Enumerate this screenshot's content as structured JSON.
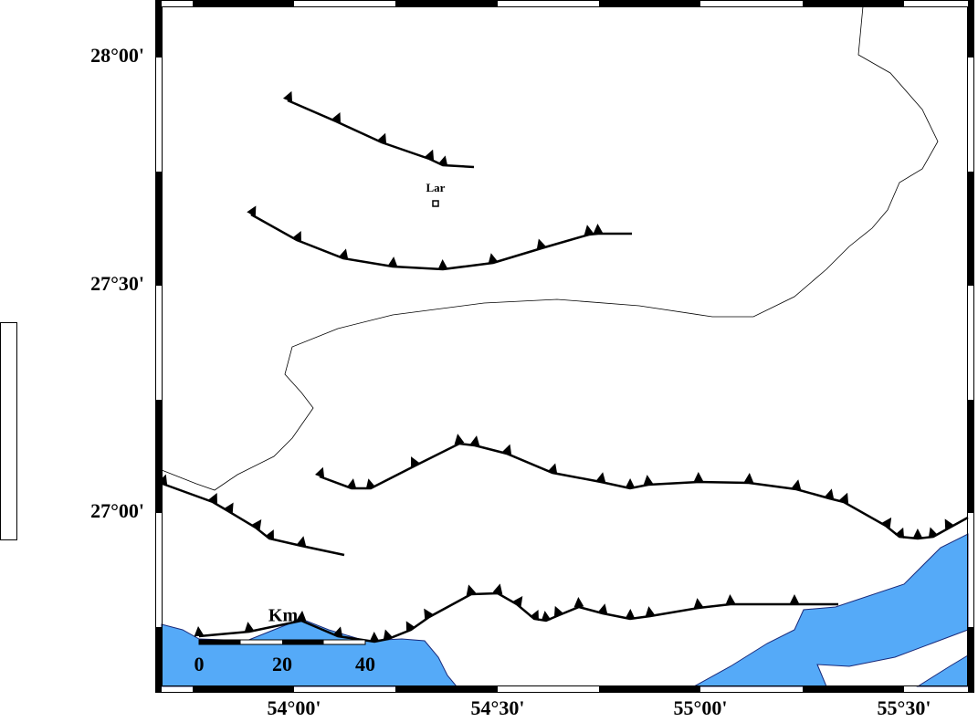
{
  "map": {
    "lat_labels": [
      "28°00'",
      "27°30'",
      "27°00'"
    ],
    "lon_labels": [
      "54°00'",
      "54°30'",
      "55°00'",
      "55°30'"
    ],
    "city": "Lar",
    "scale_bar": {
      "unit": "Km",
      "labels": [
        0,
        20,
        40
      ]
    }
  }
}
